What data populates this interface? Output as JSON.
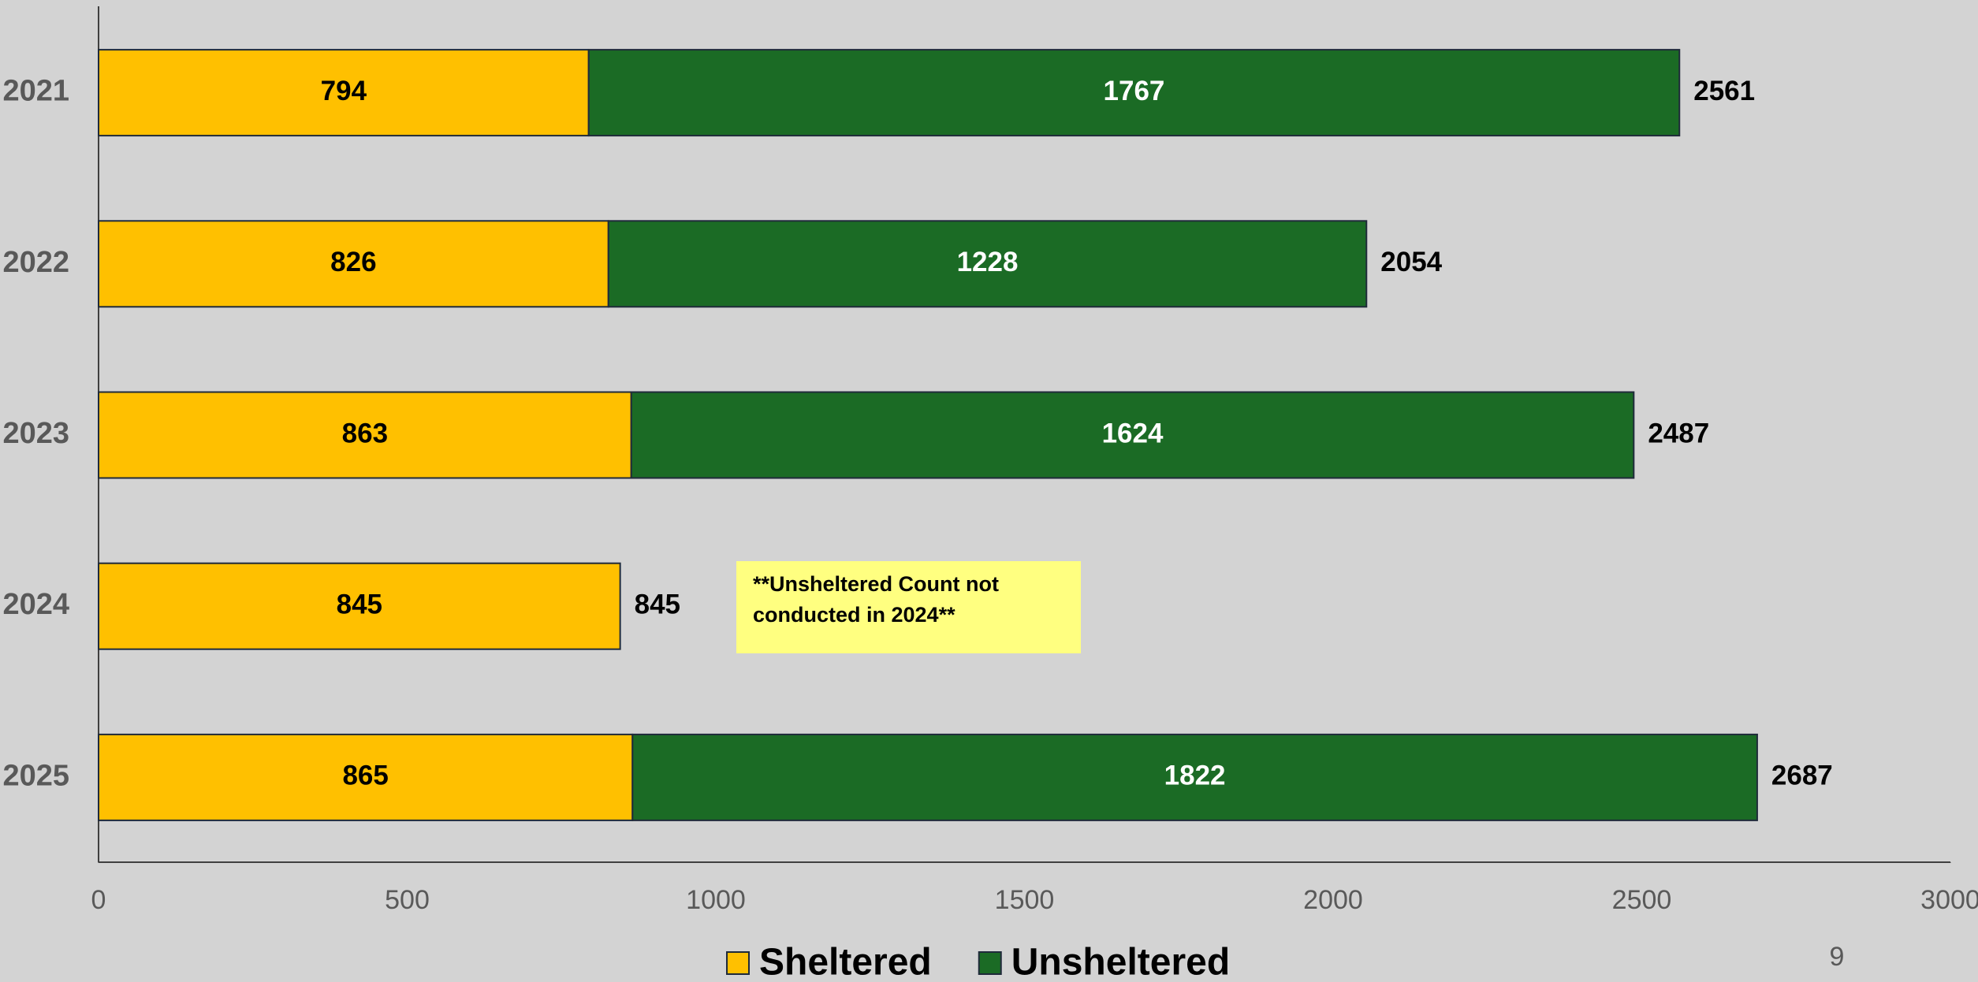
{
  "chart_data": {
    "type": "bar",
    "orientation": "horizontal",
    "stacked": true,
    "categories": [
      "2021",
      "2022",
      "2023",
      "2024",
      "2025"
    ],
    "series": [
      {
        "name": "Sheltered",
        "color": "#ffc000",
        "values": [
          794,
          826,
          863,
          845,
          865
        ]
      },
      {
        "name": "Unsheltered",
        "color": "#1b6b25",
        "values": [
          1767,
          1228,
          1624,
          null,
          1822
        ]
      }
    ],
    "totals": [
      2561,
      2054,
      2487,
      845,
      2687
    ],
    "xlim": [
      0,
      3000
    ],
    "xticks": [
      0,
      500,
      1000,
      1500,
      2000,
      2500,
      3000
    ],
    "annotation": [
      "**Unsheltered Count not",
      "conducted in 2024**"
    ],
    "page_number": "9"
  }
}
